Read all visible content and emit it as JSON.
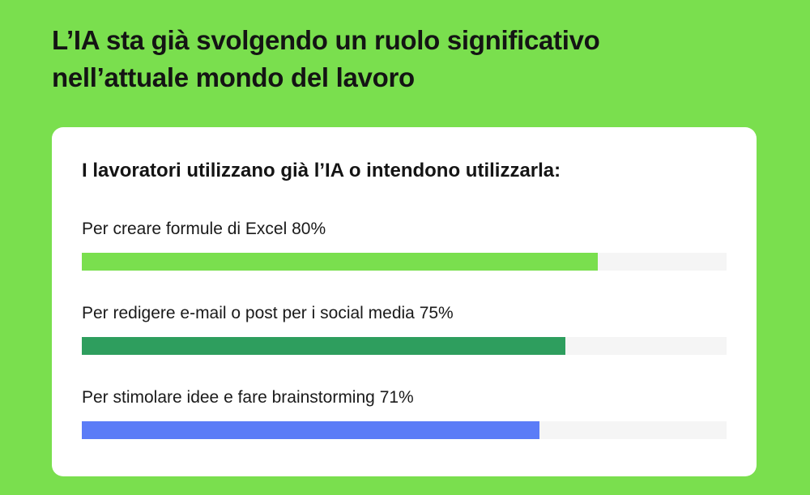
{
  "title_lines": [
    "L’IA sta già svolgendo un ruolo significativo",
    "nell’attuale mondo del lavoro"
  ],
  "card": {
    "heading": "I lavoratori utilizzano già l’IA o intendono utilizzarla:"
  },
  "chart_data": {
    "type": "bar",
    "orientation": "horizontal",
    "title": "I lavoratori utilizzano già l’IA o intendono utilizzarla:",
    "xlim": [
      0,
      100
    ],
    "grid": false,
    "categories": [
      "Per creare formule di Excel",
      "Per redigere e-mail o post per i social media",
      "Per stimolare idee e fare brainstorming"
    ],
    "values": [
      80,
      75,
      71
    ],
    "value_labels": [
      "80%",
      "75%",
      "71%"
    ],
    "colors": [
      "#7ADF4E",
      "#2E9E5E",
      "#5B7CF7"
    ],
    "track_color": "#F5F5F5"
  }
}
